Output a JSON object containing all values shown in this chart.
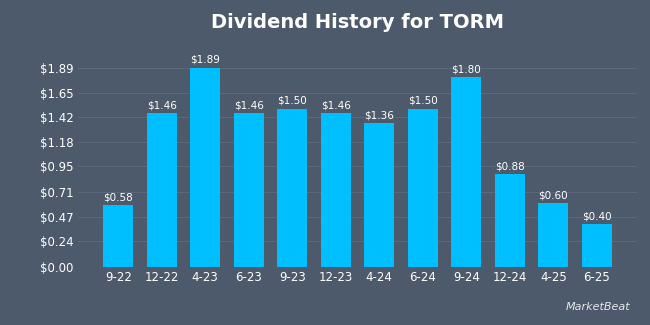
{
  "title": "Dividend History for TORM",
  "categories": [
    "9-22",
    "12-22",
    "4-23",
    "6-23",
    "9-23",
    "12-23",
    "4-24",
    "6-24",
    "9-24",
    "12-24",
    "4-25",
    "6-25"
  ],
  "values": [
    0.58,
    1.46,
    1.89,
    1.46,
    1.5,
    1.46,
    1.36,
    1.5,
    1.8,
    0.88,
    0.6,
    0.4
  ],
  "bar_color": "#00BFFF",
  "background_color": "#4d5a6b",
  "plot_bg_color": "#4d5a6b",
  "text_color": "#ffffff",
  "grid_color": "#5d6b7d",
  "title_fontsize": 14,
  "tick_fontsize": 8.5,
  "label_fontsize": 7.5,
  "ylim": [
    0,
    2.13
  ],
  "yticks": [
    0.0,
    0.24,
    0.47,
    0.71,
    0.95,
    1.18,
    1.42,
    1.65,
    1.89
  ],
  "ytick_labels": [
    "$0.00",
    "$0.24",
    "$0.47",
    "$0.71",
    "$0.95",
    "$1.18",
    "$1.42",
    "$1.65",
    "$1.89"
  ]
}
